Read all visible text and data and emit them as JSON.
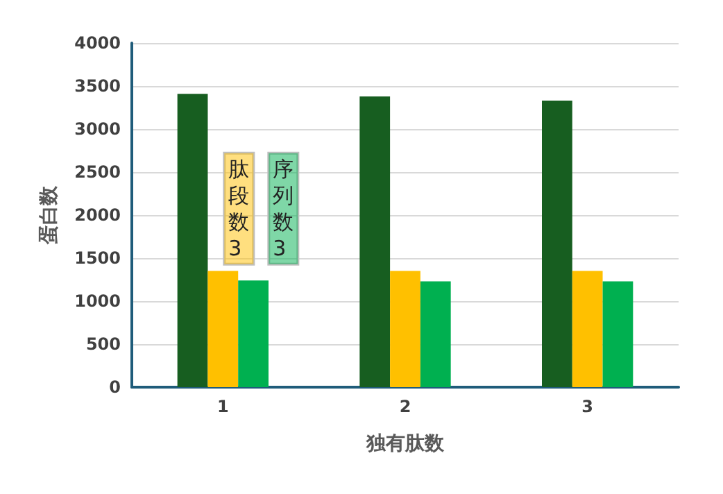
{
  "chart_data": {
    "type": "bar",
    "xlabel": "独有肽数",
    "ylabel": "蛋白数",
    "categories": [
      "1",
      "2",
      "3"
    ],
    "series": [
      {
        "color": "#175e20",
        "values": [
          3410,
          3380,
          3330
        ]
      },
      {
        "color": "#ffc000",
        "values": [
          1350,
          1350,
          1350
        ]
      },
      {
        "color": "#00b050",
        "values": [
          1240,
          1230,
          1230
        ]
      }
    ],
    "annotations": [
      "肽段数3",
      "序列数3"
    ],
    "ylim": [
      0,
      4000
    ],
    "yticks": [
      0,
      500,
      1000,
      1500,
      2000,
      2500,
      3000,
      3500,
      4000
    ],
    "grid": "y"
  }
}
